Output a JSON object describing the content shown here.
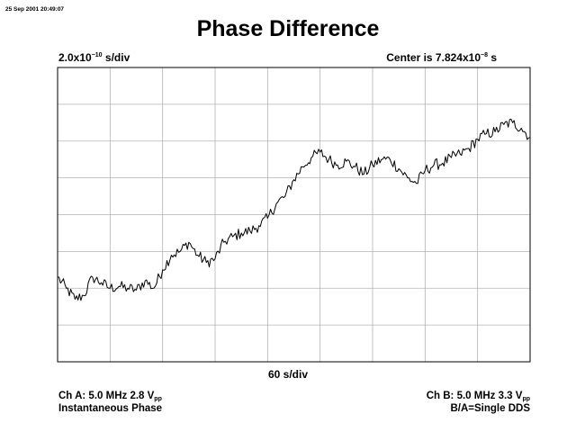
{
  "header": {
    "timestamp": "25 Sep 2001 20:49:07",
    "title": "Phase Difference",
    "y_scale_mantissa": "2.0x10",
    "y_scale_exp": "−10",
    "y_scale_unit": " s/div",
    "center_prefix": "Center is 7.824x10",
    "center_exp": "−8",
    "center_unit": " s"
  },
  "footer": {
    "x_scale": "60 s/div",
    "ch_a_text": "Ch A: 5.0 MHz 2.8 V",
    "ch_a_sub": "pp",
    "ch_a_mode": "Instantaneous Phase",
    "ch_b_text": "Ch B: 5.0 MHz 3.3 V",
    "ch_b_sub": "pp",
    "ch_b_mode": "B/A=Single DDS"
  },
  "chart_data": {
    "type": "line",
    "title": "Phase Difference",
    "xlabel": "60 s/div",
    "ylabel": "2.0x10^-10 s/div",
    "x_divisions": 9,
    "y_divisions": 8,
    "grid": true,
    "x_unit": "s",
    "y_unit": "divisions from bottom",
    "series": [
      {
        "x": [
          0,
          10,
          20,
          30,
          40,
          50,
          60,
          70,
          80,
          90,
          100,
          110,
          120,
          130,
          140,
          150,
          160,
          170,
          180,
          190,
          200,
          210,
          220,
          230,
          240,
          250,
          260,
          270,
          280,
          290,
          300,
          310,
          320,
          330,
          340,
          350,
          360,
          370,
          380,
          390,
          400,
          410,
          420,
          430,
          440,
          450,
          460,
          470,
          480,
          490,
          500,
          510,
          520,
          530,
          540
        ],
        "y": [
          2.3,
          2.0,
          1.7,
          1.8,
          2.3,
          2.15,
          2.0,
          2.05,
          2.0,
          1.95,
          2.2,
          2.0,
          2.5,
          2.9,
          3.0,
          3.25,
          2.9,
          2.7,
          2.8,
          3.25,
          3.4,
          3.5,
          3.55,
          3.7,
          3.9,
          4.3,
          4.5,
          4.95,
          5.3,
          5.55,
          5.7,
          5.5,
          5.35,
          5.45,
          5.3,
          5.1,
          5.35,
          5.5,
          5.5,
          5.25,
          5.0,
          4.85,
          5.2,
          5.35,
          5.4,
          5.55,
          5.65,
          5.8,
          6.05,
          6.2,
          6.25,
          6.45,
          6.5,
          6.35,
          6.1
        ]
      }
    ]
  }
}
